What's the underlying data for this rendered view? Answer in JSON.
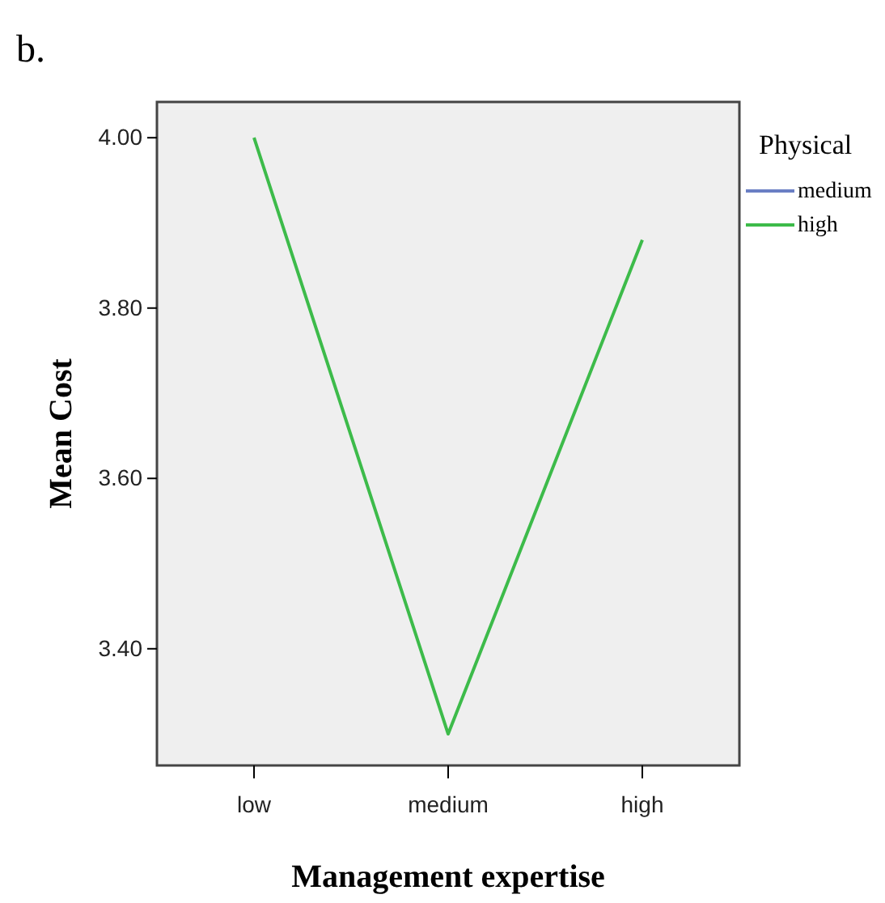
{
  "chart_data": {
    "type": "line",
    "title": "b.",
    "xlabel": "Management expertise",
    "ylabel": "Mean Cost",
    "legend_title": "Physical",
    "categories": [
      "low",
      "medium",
      "high"
    ],
    "series": [
      {
        "name": "medium",
        "color": "#6a7fc4",
        "values": [
          null,
          null,
          null
        ]
      },
      {
        "name": "high",
        "color": "#3dbb4a",
        "values": [
          4.0,
          3.3,
          3.88
        ]
      }
    ],
    "ylim": [
      3.263,
      4.042
    ],
    "yticks": [
      {
        "value": 3.4,
        "label": "3.40"
      },
      {
        "value": 3.6,
        "label": "3.60"
      },
      {
        "value": 3.8,
        "label": "3.80"
      },
      {
        "value": 4.0,
        "label": "4.00"
      }
    ],
    "grid": false,
    "legend": "right",
    "marker": "none",
    "line_style": "solid"
  }
}
